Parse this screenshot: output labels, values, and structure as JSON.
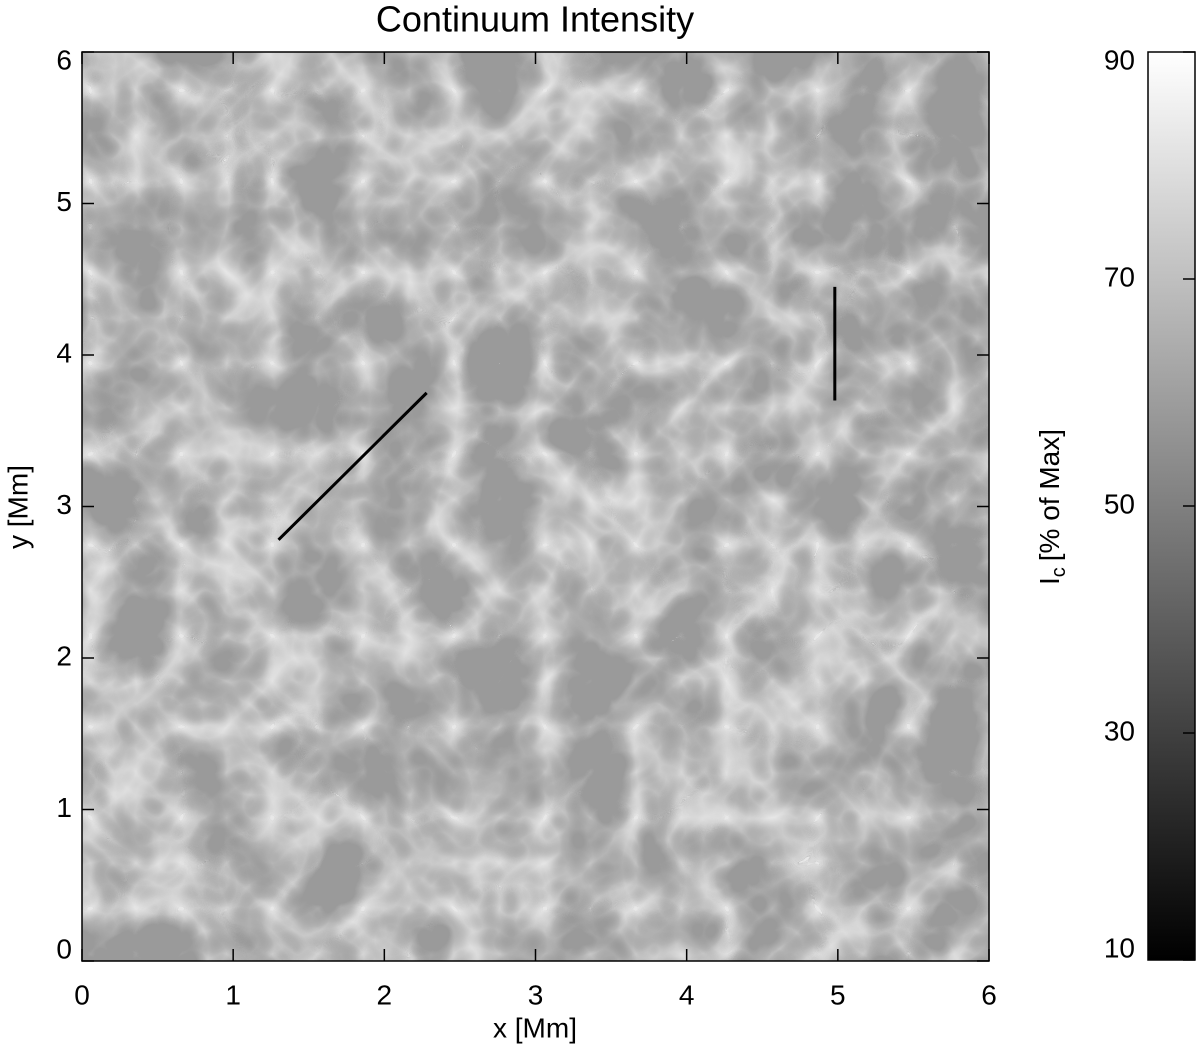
{
  "chart_data": {
    "type": "image",
    "title": "Continuum Intensity",
    "x_label": "x [Mm]",
    "y_label": "y [Mm]",
    "xlim": [
      0,
      6
    ],
    "ylim": [
      0,
      6
    ],
    "xticks": [
      0,
      1,
      2,
      3,
      4,
      5,
      6
    ],
    "yticks": [
      0,
      1,
      2,
      3,
      4,
      5,
      6
    ],
    "colorbar": {
      "lim": [
        10,
        90
      ],
      "ticks": [
        10,
        30,
        50,
        70,
        90
      ],
      "colors": [
        "#000000",
        "#ffffff"
      ],
      "label": {
        "main": "I",
        "sub": "c",
        "rest": "[% of Max]"
      }
    },
    "lines": [
      {
        "color": "#000000",
        "x": [
          1.3,
          2.28
        ],
        "y": [
          2.78,
          3.75
        ]
      },
      {
        "color": "#000000",
        "x": [
          4.98,
          4.98
        ],
        "y": [
          3.7,
          4.45
        ]
      }
    ]
  }
}
